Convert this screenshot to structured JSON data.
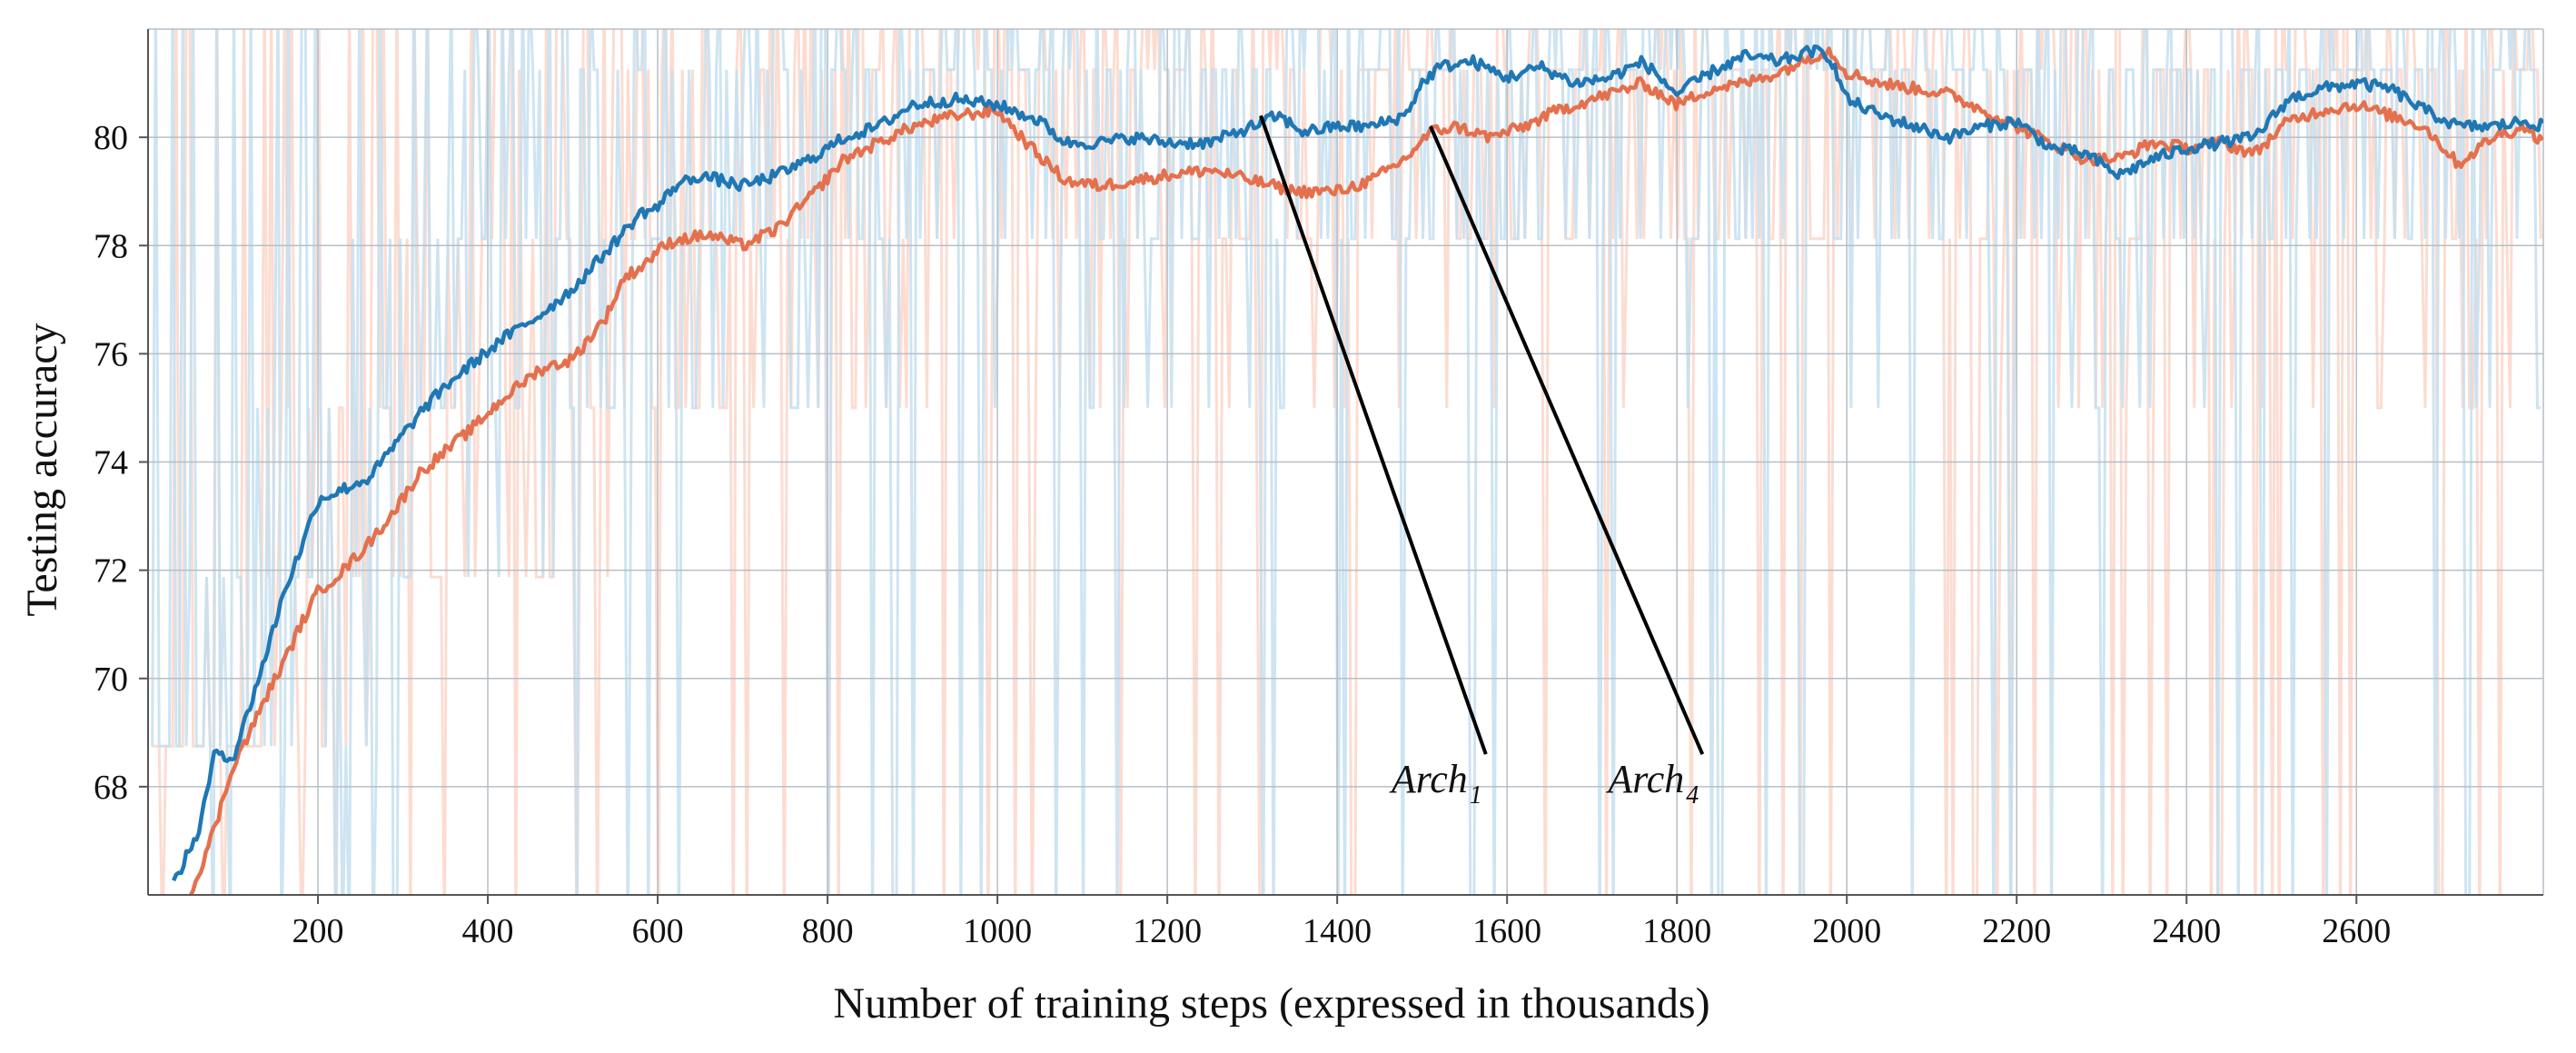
{
  "chart_data": {
    "type": "line",
    "title": "",
    "xlabel": "Number of training steps (expressed in thousands)",
    "ylabel": "Testing accuracy",
    "xlim": [
      0,
      2820
    ],
    "ylim": [
      66,
      82
    ],
    "xticks": [
      200,
      400,
      600,
      800,
      1000,
      1200,
      1400,
      1600,
      1800,
      2000,
      2200,
      2400,
      2600
    ],
    "yticks": [
      68,
      70,
      72,
      74,
      76,
      78,
      80
    ],
    "grid": true,
    "colors": {
      "arch1": "#1f77b4",
      "arch4": "#e4704d",
      "arch1_raw": "#c6dff0",
      "arch4_raw": "#fcd6c9",
      "grid": "#b7bec6",
      "annotation_line": "#000000"
    },
    "series": [
      {
        "name": "Arch1",
        "label_main": "Arch",
        "label_sub": "1",
        "color": "#1f77b4",
        "x": [
          30,
          60,
          80,
          100,
          120,
          140,
          160,
          180,
          200,
          230,
          260,
          290,
          320,
          350,
          380,
          420,
          460,
          500,
          540,
          580,
          600,
          620,
          650,
          700,
          740,
          780,
          820,
          860,
          900,
          950,
          1000,
          1050,
          1080,
          1120,
          1160,
          1200,
          1250,
          1300,
          1330,
          1360,
          1400,
          1440,
          1480,
          1500,
          1520,
          1560,
          1600,
          1640,
          1680,
          1720,
          1760,
          1800,
          1840,
          1880,
          1920,
          1960,
          1980,
          2000,
          2040,
          2080,
          2120,
          2160,
          2200,
          2240,
          2280,
          2320,
          2360,
          2400,
          2440,
          2480,
          2520,
          2560,
          2600,
          2640,
          2680,
          2720,
          2760,
          2800,
          2820
        ],
        "values": [
          66.2,
          67.2,
          68.7,
          68.5,
          69.5,
          70.5,
          71.6,
          72.4,
          73.3,
          73.5,
          73.7,
          74.3,
          74.9,
          75.4,
          75.8,
          76.3,
          76.7,
          77.2,
          77.9,
          78.6,
          78.7,
          79.1,
          79.3,
          79.1,
          79.3,
          79.6,
          80.0,
          80.2,
          80.6,
          80.7,
          80.6,
          80.3,
          79.9,
          79.9,
          80.0,
          79.9,
          79.9,
          80.2,
          80.4,
          80.1,
          80.2,
          80.2,
          80.4,
          81.0,
          81.3,
          81.4,
          81.1,
          81.3,
          81.0,
          81.1,
          81.4,
          80.8,
          81.2,
          81.5,
          81.4,
          81.6,
          81.5,
          80.7,
          80.4,
          80.2,
          80.0,
          80.2,
          80.3,
          79.8,
          79.7,
          79.3,
          79.6,
          79.8,
          79.9,
          80.0,
          80.7,
          80.9,
          81.0,
          80.9,
          80.5,
          80.2,
          80.2,
          80.3,
          80.2
        ]
      },
      {
        "name": "Arch4",
        "label_main": "Arch",
        "label_sub": "4",
        "color": "#e4704d",
        "x": [
          50,
          80,
          100,
          120,
          140,
          160,
          180,
          200,
          230,
          260,
          290,
          320,
          350,
          380,
          420,
          460,
          500,
          540,
          560,
          580,
          600,
          620,
          660,
          700,
          740,
          780,
          820,
          860,
          900,
          950,
          1000,
          1040,
          1080,
          1120,
          1160,
          1200,
          1250,
          1300,
          1350,
          1400,
          1440,
          1480,
          1510,
          1540,
          1580,
          1620,
          1660,
          1700,
          1760,
          1800,
          1840,
          1880,
          1920,
          1960,
          1980,
          2000,
          2040,
          2080,
          2120,
          2160,
          2200,
          2240,
          2280,
          2320,
          2360,
          2400,
          2440,
          2480,
          2520,
          2560,
          2600,
          2640,
          2680,
          2720,
          2760,
          2800,
          2820
        ],
        "values": [
          66.0,
          67.3,
          68.4,
          69.0,
          69.7,
          70.3,
          71.0,
          71.6,
          72.0,
          72.5,
          73.1,
          73.8,
          74.2,
          74.6,
          75.2,
          75.7,
          75.9,
          76.7,
          77.4,
          77.6,
          77.9,
          78.1,
          78.2,
          78.0,
          78.3,
          78.9,
          79.6,
          79.9,
          80.2,
          80.4,
          80.5,
          79.8,
          79.2,
          79.1,
          79.2,
          79.3,
          79.4,
          79.2,
          79.0,
          79.0,
          79.2,
          79.6,
          80.1,
          80.2,
          80.0,
          80.2,
          80.5,
          80.7,
          81.0,
          80.6,
          80.9,
          81.0,
          81.2,
          81.5,
          81.6,
          81.2,
          81.0,
          80.9,
          80.8,
          80.5,
          80.2,
          79.9,
          79.6,
          79.6,
          79.9,
          79.8,
          79.9,
          79.7,
          80.3,
          80.5,
          80.6,
          80.4,
          80.2,
          79.5,
          80.0,
          80.2,
          79.9
        ]
      }
    ],
    "raw_series_levels": [
      68.75,
      71.875,
      75.0,
      78.125,
      81.25
    ],
    "annotations": [
      {
        "series": "Arch1",
        "text_main": "Arch",
        "text_sub": "1",
        "pointer_x": 1310,
        "pointer_y": 80.4,
        "label_x": 1575,
        "label_y": 68.6
      },
      {
        "series": "Arch4",
        "text_main": "Arch",
        "text_sub": "4",
        "pointer_x": 1510,
        "pointer_y": 80.2,
        "label_x": 1830,
        "label_y": 68.6
      }
    ]
  }
}
